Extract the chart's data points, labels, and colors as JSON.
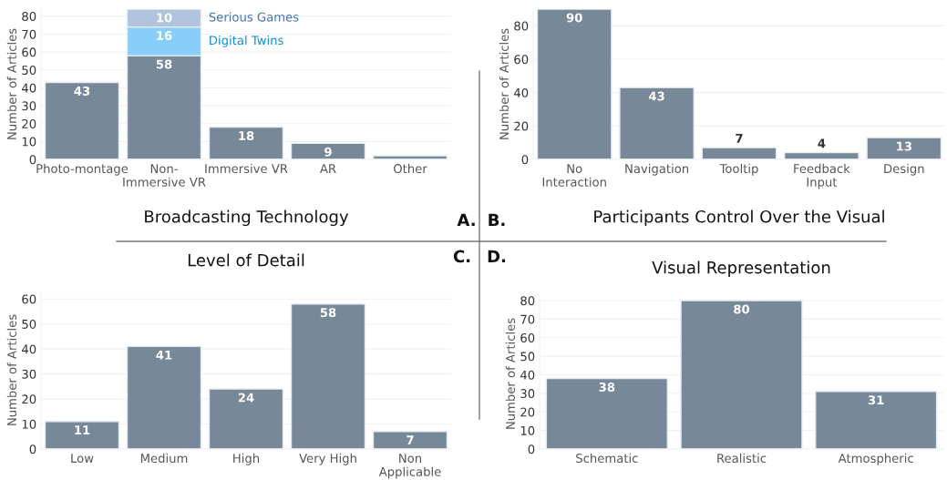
{
  "chart_data": [
    {
      "type": "bar",
      "title": "Broadcasting Technology",
      "ylabel": "Number of Articles",
      "categories": [
        "Photo-montage",
        "Non-\nImmersive VR",
        "Immersive VR",
        "AR",
        "Other"
      ],
      "stacked": true,
      "ylim": [
        0,
        84
      ],
      "yticks": [
        0,
        10,
        20,
        30,
        40,
        50,
        60,
        70,
        80
      ],
      "grid": "y",
      "annotations": [
        "A."
      ],
      "series": [
        {
          "color": "#778899",
          "values": [
            43,
            58,
            18,
            9,
            2
          ],
          "value_labels": [
            "43",
            "58",
            "18",
            "9",
            null
          ]
        },
        {
          "name": "Digital Twins",
          "color": "#87cefa",
          "values": [
            null,
            16,
            null,
            null,
            null
          ],
          "value_labels": [
            null,
            "16",
            null,
            null,
            null
          ]
        },
        {
          "name": "Serious Games",
          "color": "#b0c4de",
          "values": [
            null,
            10,
            null,
            null,
            null
          ],
          "value_labels": [
            null,
            "10",
            null,
            null,
            null
          ]
        }
      ]
    },
    {
      "type": "bar",
      "title": "Participants Control Over the Visual",
      "ylabel": "Number of Articles",
      "categories": [
        "No\nInteraction",
        "Navigation",
        "Tooltip",
        "Feedback\nInput",
        "Design"
      ],
      "ylim": [
        0,
        90
      ],
      "yticks": [
        0,
        20,
        40,
        60,
        80
      ],
      "grid": "y",
      "annotations": [
        "B."
      ],
      "series": [
        {
          "color": "#778899",
          "values": [
            90,
            43,
            7,
            4,
            13
          ],
          "value_labels": [
            "90",
            "43",
            "7",
            "4",
            "13"
          ]
        }
      ]
    },
    {
      "type": "bar",
      "title": "Level of Detail",
      "ylabel": "Number of Articles",
      "categories": [
        "Low",
        "Medium",
        "High",
        "Very High",
        "Non\nApplicable"
      ],
      "ylim": [
        0,
        63
      ],
      "yticks": [
        0,
        10,
        20,
        30,
        40,
        50,
        60
      ],
      "grid": "y",
      "annotations": [
        "C."
      ],
      "series": [
        {
          "color": "#778899",
          "values": [
            11,
            41,
            24,
            58,
            7
          ],
          "value_labels": [
            "11",
            "41",
            "24",
            "58",
            "7"
          ]
        }
      ]
    },
    {
      "type": "bar",
      "title": "Visual Representation",
      "ylabel": "Number of Articles",
      "categories": [
        "Schematic",
        "Realistic",
        "Atmospheric"
      ],
      "ylim": [
        0,
        81
      ],
      "yticks": [
        0,
        10,
        20,
        30,
        40,
        50,
        60,
        70,
        80
      ],
      "grid": "y",
      "annotations": [
        "D."
      ],
      "series": [
        {
          "color": "#778899",
          "values": [
            38,
            80,
            31
          ],
          "value_labels": [
            "38",
            "80",
            "31"
          ]
        }
      ]
    }
  ]
}
